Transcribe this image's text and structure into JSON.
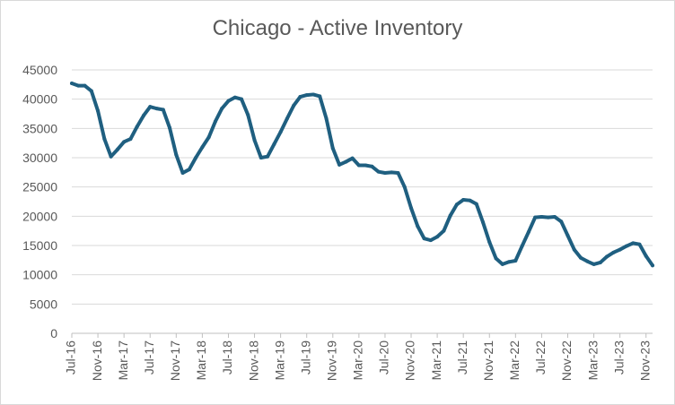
{
  "chart_data": {
    "type": "line",
    "title": "Chicago - Active Inventory",
    "xlabel": "",
    "ylabel": "",
    "ylim": [
      0,
      45000
    ],
    "y_ticks": [
      0,
      5000,
      10000,
      15000,
      20000,
      25000,
      30000,
      35000,
      40000,
      45000
    ],
    "grid": "horizontal",
    "legend": "none",
    "x_tick_labels": [
      "Jul-16",
      "Nov-16",
      "Mar-17",
      "Jul-17",
      "Nov-17",
      "Mar-18",
      "Jul-18",
      "Nov-18",
      "Mar-19",
      "Jul-19",
      "Nov-19",
      "Mar-20",
      "Jul-20",
      "Nov-20",
      "Mar-21",
      "Jul-21",
      "Nov-21",
      "Mar-22",
      "Jul-22",
      "Nov-22",
      "Mar-23",
      "Jul-23",
      "Nov-23"
    ],
    "line_color": "#1f5f80",
    "series": [
      {
        "values": [
          42700,
          42300,
          42300,
          41400,
          38000,
          33200,
          30200,
          31400,
          32700,
          33200,
          35300,
          37200,
          38700,
          38400,
          38200,
          35100,
          30500,
          27400,
          28000,
          30000,
          31800,
          33500,
          36200,
          38400,
          39700,
          40300,
          40000,
          37300,
          33000,
          30000,
          30200,
          32300,
          34400,
          36700,
          38900,
          40400,
          40700,
          40800,
          40500,
          36700,
          31600,
          28800,
          29300,
          29900,
          28700,
          28700,
          28500,
          27600,
          27400,
          27500,
          27400,
          25000,
          21400,
          18300,
          16200,
          15900,
          16500,
          17500,
          20100,
          22000,
          22800,
          22700,
          22100,
          19000,
          15600,
          12800,
          11800,
          12200,
          12400,
          14900,
          17300,
          19800,
          19900,
          19800,
          19900,
          19100,
          16700,
          14300,
          12900,
          12300,
          11800,
          12100,
          13100,
          13800,
          14300,
          14900,
          15400,
          15200,
          13200,
          11600
        ]
      }
    ]
  }
}
